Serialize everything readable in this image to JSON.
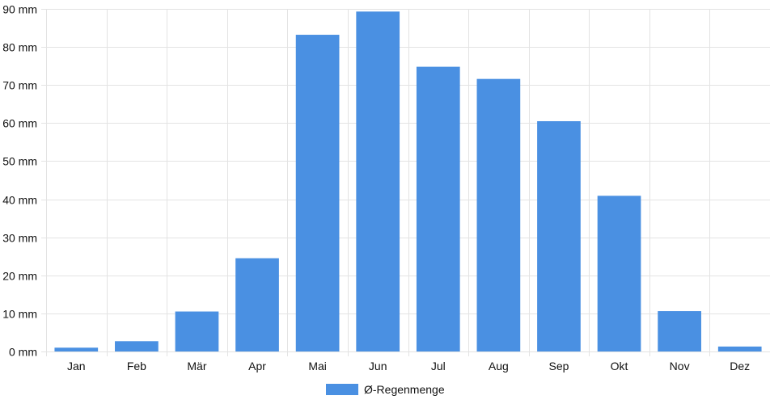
{
  "chart_data": {
    "type": "bar",
    "categories": [
      "Jan",
      "Feb",
      "Mär",
      "Apr",
      "Mai",
      "Jun",
      "Jul",
      "Aug",
      "Sep",
      "Okt",
      "Nov",
      "Dez"
    ],
    "series": [
      {
        "name": "Ø-Regenmenge",
        "values": [
          1,
          2.7,
          10.5,
          24.5,
          83.2,
          89.3,
          74.8,
          71.6,
          60.5,
          40.9,
          10.6,
          1.3
        ],
        "color": "#4A90E2"
      }
    ],
    "y_unit": "mm",
    "ylim": [
      0,
      90
    ],
    "y_ticks": [
      0,
      10,
      20,
      30,
      40,
      50,
      60,
      70,
      80,
      90
    ],
    "y_tick_labels": [
      "0 mm",
      "10 mm",
      "20 mm",
      "30 mm",
      "40 mm",
      "50 mm",
      "60 mm",
      "70 mm",
      "80 mm",
      "90 mm"
    ],
    "grid": true,
    "legend_position": "bottom"
  }
}
